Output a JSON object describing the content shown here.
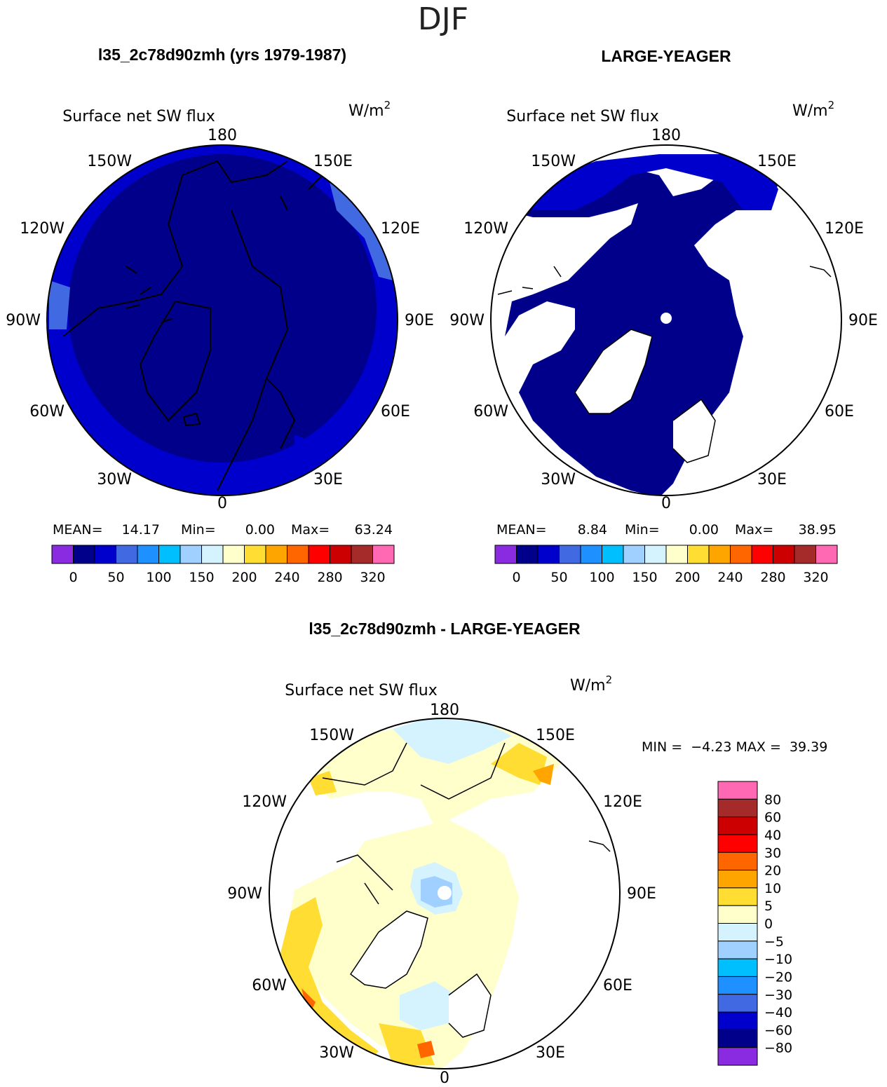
{
  "page_title": "DJF",
  "panels": [
    {
      "title": "l35_2c78d90zmh (yrs 1979-1987)",
      "variable": "Surface net SW flux",
      "units_base": "W/m",
      "units_exp": "2",
      "stats": {
        "mean_label": "MEAN=",
        "mean": "14.17",
        "min_label": "Min=",
        "min": "0.00",
        "max_label": "Max=",
        "max": "63.24"
      }
    },
    {
      "title": "LARGE-YEAGER",
      "variable": "Surface net SW flux",
      "units_base": "W/m",
      "units_exp": "2",
      "stats": {
        "mean_label": "MEAN=",
        "mean": "8.84",
        "min_label": "Min=",
        "min": "0.00",
        "max_label": "Max=",
        "max": "38.95"
      }
    },
    {
      "title": "l35_2c78d90zmh - LARGE-YEAGER",
      "variable": "Surface net SW flux",
      "units_base": "W/m",
      "units_exp": "2",
      "stats_text": "MIN =  −4.23 MAX =  39.39"
    }
  ],
  "lon_labels": [
    "180",
    "150E",
    "120E",
    "90E",
    "60E",
    "30E",
    "0",
    "30W",
    "60W",
    "90W",
    "120W",
    "150W"
  ],
  "colorbar_abs": {
    "colors": [
      "#8a2be2",
      "#00008b",
      "#0000cd",
      "#4169e1",
      "#1e90ff",
      "#00bfff",
      "#a0d0ff",
      "#d4f3ff",
      "#ffffcc",
      "#ffdd33",
      "#ffa500",
      "#ff6600",
      "#ff0000",
      "#cc0000",
      "#a52a2a",
      "#ff69b4"
    ],
    "labels": [
      "0",
      "50",
      "100",
      "150",
      "200",
      "240",
      "280",
      "320"
    ]
  },
  "colorbar_diff": {
    "colors": [
      "#8a2be2",
      "#00008b",
      "#0000cd",
      "#4169e1",
      "#1e90ff",
      "#00bfff",
      "#a0d0ff",
      "#d4f3ff",
      "#ffffcc",
      "#ffdd33",
      "#ffa500",
      "#ff6600",
      "#ff0000",
      "#cc0000",
      "#a52a2a",
      "#ff69b4"
    ],
    "labels": [
      "80",
      "60",
      "40",
      "30",
      "20",
      "10",
      "5",
      "0",
      "−5",
      "−10",
      "−20",
      "−30",
      "−40",
      "−60",
      "−80"
    ]
  }
}
